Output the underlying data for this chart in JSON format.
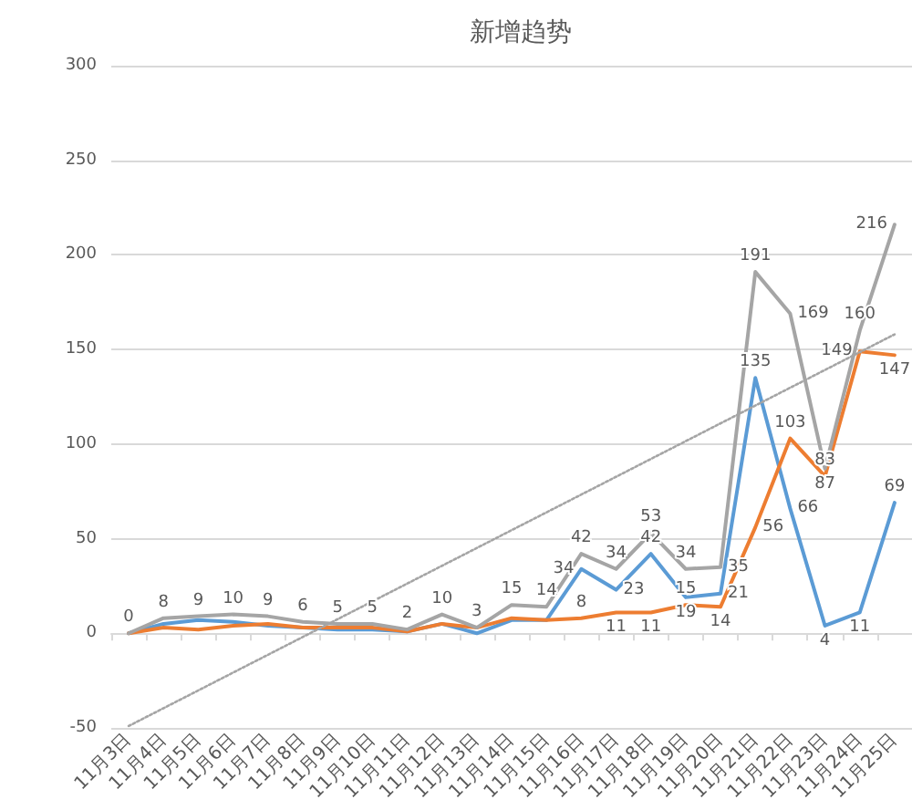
{
  "chart_data": {
    "type": "line",
    "title": "新增趋势",
    "categories": [
      "11月3日",
      "11月4日",
      "11月5日",
      "11月6日",
      "11月7日",
      "11月8日",
      "11月9日",
      "11月10日",
      "11月11日",
      "11月12日",
      "11月13日",
      "11月14日",
      "11月15日",
      "11月16日",
      "11月17日",
      "11月18日",
      "11月19日",
      "11月20日",
      "11月21日",
      "11月22日",
      "11月23日",
      "11月24日",
      "11月25日"
    ],
    "series": [
      {
        "color": "#5b9bd5",
        "values": [
          0,
          5,
          7,
          6,
          4,
          3,
          2,
          2,
          1,
          5,
          0,
          7,
          7,
          34,
          23,
          42,
          19,
          21,
          135,
          66,
          4,
          11,
          69
        ],
        "value_labels": [
          null,
          null,
          null,
          null,
          null,
          null,
          null,
          null,
          null,
          null,
          null,
          null,
          null,
          "34",
          "23",
          "42",
          "19",
          "21",
          "135",
          "66",
          "4",
          "11",
          "69"
        ]
      },
      {
        "color": "#ed7d31",
        "values": [
          0,
          3,
          2,
          4,
          5,
          3,
          3,
          3,
          1,
          5,
          3,
          8,
          7,
          8,
          11,
          11,
          15,
          14,
          56,
          103,
          83,
          149,
          147
        ],
        "value_labels": [
          null,
          null,
          null,
          null,
          null,
          null,
          null,
          null,
          null,
          null,
          null,
          null,
          null,
          "8",
          "11",
          "11",
          "15",
          "14",
          "56",
          "103",
          "83",
          "149",
          "147"
        ]
      },
      {
        "color": "#a5a5a5",
        "values": [
          0,
          8,
          9,
          10,
          9,
          6,
          5,
          5,
          2,
          10,
          3,
          15,
          14,
          42,
          34,
          53,
          34,
          35,
          191,
          169,
          87,
          160,
          216
        ],
        "value_labels": [
          "0",
          "8",
          "9",
          "10",
          "9",
          "6",
          "5",
          "5",
          "2",
          "10",
          "3",
          "15",
          "14",
          "42",
          "34",
          "53",
          "34",
          "35",
          "191",
          "169",
          "87",
          "160",
          "216"
        ]
      },
      {
        "type": "line",
        "color": "#a5a5a5",
        "x": [
          "11月3日",
          "11月25日"
        ],
        "values": [
          -49,
          158
        ],
        "line_style": "dotted"
      }
    ],
    "ylim": [
      -50,
      300
    ],
    "yticks": [
      -50,
      0,
      50,
      100,
      150,
      200,
      250,
      300
    ],
    "grid": "y",
    "marker": "none",
    "line_style": "solid"
  }
}
